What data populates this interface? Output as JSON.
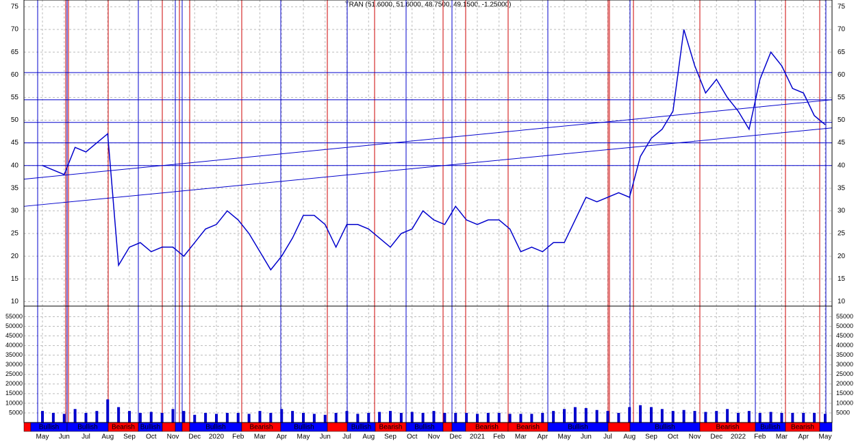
{
  "chart_data": [
    {
      "type": "line",
      "title": "TRAN (51.6000, 51.6000, 48.7500, 49.1500, -1.25000)",
      "categories": [
        "May",
        null,
        "Jun",
        null,
        "Jul",
        null,
        "Aug",
        null,
        "Sep",
        null,
        "Oct",
        null,
        "Nov",
        null,
        "Dec",
        null,
        "2020",
        null,
        "Feb",
        null,
        "Mar",
        null,
        "Apr",
        null,
        "May",
        null,
        "Jun",
        null,
        "Jul",
        null,
        "Aug",
        null,
        "Sep",
        null,
        "Oct",
        null,
        "Nov",
        null,
        "Dec",
        null,
        "2021",
        null,
        "Feb",
        null,
        "Mar",
        null,
        "Apr",
        null,
        "May",
        null,
        "Jun",
        null,
        "Jul",
        null,
        "Aug",
        null,
        "Sep",
        null,
        "Oct",
        null,
        "Nov",
        null,
        "Dec",
        null,
        "2022",
        null,
        "Feb",
        null,
        "Mar",
        null,
        "Apr",
        null,
        "May"
      ],
      "series": [
        {
          "name": "TRAN",
          "color": "#0000cc",
          "values": [
            40,
            39,
            38,
            44,
            43,
            45,
            47,
            18,
            22,
            23,
            21,
            22,
            22,
            20,
            23,
            26,
            27,
            30,
            28,
            25,
            21,
            17,
            20,
            24,
            29,
            29,
            27,
            22,
            27,
            27,
            26,
            24,
            22,
            25,
            26,
            30,
            28,
            27,
            31,
            28,
            27,
            28,
            28,
            26,
            21,
            22,
            21,
            23,
            23,
            28,
            33,
            32,
            33,
            34,
            33,
            42,
            46,
            48,
            52,
            70,
            62,
            56,
            59,
            55,
            52,
            48,
            59,
            65,
            62,
            57,
            56,
            51,
            49
          ]
        }
      ],
      "ylim": [
        9,
        76.5
      ],
      "yticks": [
        10,
        15,
        20,
        25,
        30,
        35,
        40,
        45,
        50,
        55,
        60,
        65,
        70,
        75
      ],
      "hlines": [
        60.5,
        54.5,
        49.5,
        45,
        40
      ],
      "trendlines": [
        {
          "start": 37,
          "end": 54.5
        },
        {
          "start": 31,
          "end": 48.3
        }
      ],
      "grid": true
    },
    {
      "type": "bar",
      "values": [
        6000,
        5000,
        4500,
        7000,
        5000,
        6000,
        12000,
        8000,
        6000,
        5000,
        5500,
        5000,
        7000,
        6000,
        4000,
        5000,
        4500,
        5000,
        5000,
        4500,
        6000,
        5000,
        7000,
        6000,
        5000,
        4500,
        4000,
        5000,
        6000,
        4500,
        5000,
        5500,
        6000,
        5000,
        5500,
        5000,
        6000,
        5000,
        5000,
        5000,
        4500,
        5000,
        5000,
        4500,
        4500,
        4500,
        5000,
        6000,
        7000,
        8000,
        7500,
        6500,
        6000,
        5000,
        8000,
        9000,
        8000,
        7000,
        6000,
        6500,
        6000,
        5500,
        6000,
        7000,
        5000,
        6000,
        5000,
        5500,
        5000,
        5000,
        5000,
        5000,
        4500
      ],
      "color": "#0000cc",
      "ylim": [
        0,
        60500
      ],
      "yticks": [
        5000,
        10000,
        15000,
        20000,
        25000,
        30000,
        35000,
        40000,
        45000,
        50000,
        55000
      ],
      "regimes": [
        {
          "color": "#ff0000"
        },
        {
          "color": "#0000ff",
          "label": "Bullish"
        },
        {
          "color": "#0000ff",
          "label": "Bullish"
        },
        {
          "color": "#ff0000",
          "label": "Bearish"
        },
        {
          "color": "#0000ff",
          "label": "Bullish"
        },
        {
          "color": "#ff0000"
        },
        {
          "color": "#0000ff"
        },
        {
          "color": "#ff0000"
        },
        {
          "color": "#0000ff",
          "label": "Bullish"
        },
        {
          "color": "#ff0000",
          "label": "Bearish"
        },
        {
          "color": "#0000ff",
          "label": "Bullish"
        },
        {
          "color": "#ff0000"
        },
        {
          "color": "#0000ff",
          "label": "Bullish"
        },
        {
          "color": "#ff0000",
          "label": "Bearish"
        },
        {
          "color": "#0000ff",
          "label": "Bullish"
        },
        {
          "color": "#ff0000"
        },
        {
          "color": "#0000ff"
        },
        {
          "color": "#ff0000",
          "label": "Bearish"
        },
        {
          "color": "#ff0000",
          "label": "Bearish"
        },
        {
          "color": "#0000ff",
          "label": "Bullish"
        },
        {
          "color": "#ff0000"
        },
        {
          "color": "#0000ff",
          "label": "Bullish"
        },
        {
          "color": "#ff0000",
          "label": "Bearish"
        },
        {
          "color": "#0000ff",
          "label": "Bullish"
        },
        {
          "color": "#ff0000",
          "label": "Bearish"
        },
        {
          "color": "#0000ff"
        }
      ]
    }
  ]
}
